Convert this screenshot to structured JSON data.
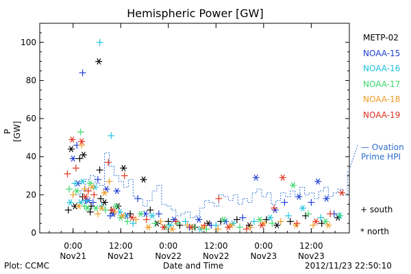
{
  "chart_data": {
    "type": "scatter",
    "title": "Hemispheric Power [GW]",
    "ylabel": "P [GW]",
    "xlabel": "Date and Time",
    "ylim": [
      0,
      110
    ],
    "xlim": [
      -0.35,
      2.9
    ],
    "yticks": [
      0,
      20,
      40,
      60,
      80,
      100
    ],
    "xticks": [
      {
        "value": 0,
        "label1": "0:00",
        "label2": "Nov21"
      },
      {
        "value": 0.5,
        "label1": "12:00",
        "label2": "Nov21"
      },
      {
        "value": 1.0,
        "label1": "0:00",
        "label2": "Nov22"
      },
      {
        "value": 1.5,
        "label1": "12:00",
        "label2": "Nov22"
      },
      {
        "value": 2.0,
        "label1": "0:00",
        "label2": "Nov23"
      },
      {
        "value": 2.5,
        "label1": "12:00",
        "label2": "Nov23"
      }
    ],
    "series": [
      {
        "name": "METP-02",
        "color": "#000000",
        "points": [
          [
            -0.02,
            44,
            "n"
          ],
          [
            0.07,
            39,
            "s"
          ],
          [
            0.11,
            41,
            "n"
          ],
          [
            0.1,
            19,
            "s"
          ],
          [
            0.19,
            14,
            "s"
          ],
          [
            0.27,
            90,
            "n"
          ],
          [
            0.28,
            33,
            "s"
          ],
          [
            0.29,
            18,
            "s"
          ],
          [
            0.4,
            12,
            "s"
          ],
          [
            0.47,
            14,
            "n"
          ],
          [
            0.53,
            34,
            "n"
          ],
          [
            0.6,
            10,
            "s"
          ],
          [
            0.74,
            28,
            "n"
          ],
          [
            0.81,
            12,
            "s"
          ],
          [
            0.88,
            5,
            "n"
          ],
          [
            1.0,
            6,
            "s"
          ],
          [
            1.12,
            4,
            "s"
          ],
          [
            1.28,
            3,
            "s"
          ],
          [
            1.42,
            5,
            "n"
          ],
          [
            1.55,
            6,
            "s"
          ],
          [
            1.72,
            7,
            "s"
          ],
          [
            1.85,
            4,
            "n"
          ],
          [
            2.03,
            7,
            "s"
          ],
          [
            2.14,
            4,
            "n"
          ],
          [
            2.28,
            6,
            "s"
          ],
          [
            2.44,
            9,
            "s"
          ],
          [
            2.61,
            5,
            "s"
          ],
          [
            2.78,
            8,
            "n"
          ],
          [
            -0.05,
            12,
            "s"
          ],
          [
            0.02,
            14,
            "n"
          ],
          [
            0.18,
            11,
            "s"
          ],
          [
            0.33,
            16,
            "n"
          ]
        ]
      },
      {
        "name": "NOAA-15",
        "color": "#1c3ed6",
        "points": [
          [
            0.0,
            39,
            "n"
          ],
          [
            0.04,
            46,
            "s"
          ],
          [
            0.1,
            84,
            "s"
          ],
          [
            0.13,
            17,
            "s"
          ],
          [
            0.16,
            17,
            "n"
          ],
          [
            0.26,
            28,
            "s"
          ],
          [
            0.35,
            23,
            "n"
          ],
          [
            0.39,
            9,
            "s"
          ],
          [
            0.42,
            10,
            "n"
          ],
          [
            0.56,
            9,
            "n"
          ],
          [
            0.68,
            18,
            "s"
          ],
          [
            0.76,
            10,
            "n"
          ],
          [
            0.9,
            10,
            "s"
          ],
          [
            1.06,
            7,
            "n"
          ],
          [
            1.22,
            3,
            "s"
          ],
          [
            1.32,
            7,
            "n"
          ],
          [
            1.45,
            4,
            "s"
          ],
          [
            1.6,
            6,
            "n"
          ],
          [
            1.78,
            8,
            "s"
          ],
          [
            1.92,
            29,
            "n"
          ],
          [
            2.12,
            12,
            "n"
          ],
          [
            2.22,
            16,
            "s"
          ],
          [
            2.37,
            19,
            "n"
          ],
          [
            2.5,
            16,
            "s"
          ],
          [
            2.57,
            27,
            "n"
          ],
          [
            2.66,
            18,
            "n"
          ],
          [
            2.74,
            10,
            "s"
          ],
          [
            0.05,
            26,
            "n"
          ],
          [
            0.21,
            16,
            "s"
          ],
          [
            0.46,
            22,
            "n"
          ]
        ]
      },
      {
        "name": "NOAA-16",
        "color": "#19c2dd",
        "points": [
          [
            -0.03,
            16,
            "n"
          ],
          [
            0.02,
            26,
            "s"
          ],
          [
            0.08,
            16,
            "n"
          ],
          [
            0.14,
            17,
            "s"
          ],
          [
            0.23,
            24,
            "n"
          ],
          [
            0.28,
            100,
            "s"
          ],
          [
            0.4,
            51,
            "s"
          ],
          [
            0.49,
            11,
            "n"
          ],
          [
            0.63,
            5,
            "s"
          ],
          [
            0.83,
            9,
            "n"
          ],
          [
            1.02,
            4,
            "n"
          ],
          [
            1.18,
            6,
            "s"
          ],
          [
            1.34,
            2,
            "n"
          ],
          [
            1.5,
            4,
            "s"
          ],
          [
            1.68,
            5,
            "n"
          ],
          [
            1.9,
            6,
            "s"
          ],
          [
            2.07,
            8,
            "n"
          ],
          [
            2.26,
            9,
            "s"
          ],
          [
            2.41,
            13,
            "n"
          ],
          [
            2.6,
            8,
            "s"
          ],
          [
            2.8,
            9,
            "n"
          ],
          [
            0.1,
            27,
            "n"
          ],
          [
            0.3,
            14,
            "s"
          ],
          [
            0.55,
            9,
            "s"
          ]
        ]
      },
      {
        "name": "NOAA-17",
        "color": "#3bd86b",
        "points": [
          [
            0.04,
            22,
            "n"
          ],
          [
            0.08,
            53,
            "s"
          ],
          [
            0.12,
            14,
            "s"
          ],
          [
            0.18,
            26,
            "n"
          ],
          [
            0.24,
            13,
            "n"
          ],
          [
            0.34,
            12,
            "s"
          ],
          [
            0.45,
            14,
            "n"
          ],
          [
            0.57,
            6,
            "s"
          ],
          [
            0.71,
            10,
            "n"
          ],
          [
            0.86,
            5,
            "s"
          ],
          [
            0.97,
            3,
            "n"
          ],
          [
            1.1,
            5,
            "s"
          ],
          [
            1.26,
            3,
            "n"
          ],
          [
            1.4,
            2,
            "s"
          ],
          [
            1.58,
            7,
            "n"
          ],
          [
            1.75,
            3,
            "s"
          ],
          [
            1.96,
            7,
            "n"
          ],
          [
            2.09,
            5,
            "s"
          ],
          [
            2.31,
            25,
            "n"
          ],
          [
            2.47,
            10,
            "s"
          ],
          [
            2.65,
            6,
            "n"
          ],
          [
            2.8,
            9,
            "s"
          ],
          [
            -0.04,
            23,
            "s"
          ],
          [
            0.15,
            13,
            "n"
          ],
          [
            0.5,
            8,
            "n"
          ]
        ]
      },
      {
        "name": "NOAA-18",
        "color": "#f09a22",
        "points": [
          [
            0.0,
            20,
            "s"
          ],
          [
            0.06,
            14,
            "n"
          ],
          [
            0.12,
            23,
            "s"
          ],
          [
            0.2,
            24,
            "n"
          ],
          [
            0.3,
            13,
            "n"
          ],
          [
            0.38,
            27,
            "s"
          ],
          [
            0.44,
            11,
            "s"
          ],
          [
            0.52,
            9,
            "n"
          ],
          [
            0.66,
            7,
            "s"
          ],
          [
            0.79,
            3,
            "n"
          ],
          [
            0.92,
            6,
            "s"
          ],
          [
            1.04,
            2,
            "n"
          ],
          [
            1.2,
            4,
            "s"
          ],
          [
            1.36,
            3,
            "n"
          ],
          [
            1.52,
            2,
            "s"
          ],
          [
            1.66,
            4,
            "n"
          ],
          [
            1.86,
            3,
            "s"
          ],
          [
            2.0,
            5,
            "n"
          ],
          [
            2.18,
            6,
            "s"
          ],
          [
            2.34,
            4,
            "n"
          ],
          [
            2.52,
            4,
            "s"
          ],
          [
            2.68,
            4,
            "n"
          ],
          [
            0.09,
            46,
            "s"
          ],
          [
            0.26,
            10,
            "s"
          ],
          [
            0.33,
            21,
            "n"
          ]
        ]
      },
      {
        "name": "NOAA-19",
        "color": "#e0301e",
        "points": [
          [
            -0.01,
            49,
            "n"
          ],
          [
            0.03,
            34,
            "s"
          ],
          [
            0.09,
            48,
            "n"
          ],
          [
            0.16,
            22,
            "s"
          ],
          [
            0.22,
            20,
            "s"
          ],
          [
            0.37,
            37,
            "s"
          ],
          [
            0.41,
            12,
            "n"
          ],
          [
            0.54,
            30,
            "s"
          ],
          [
            0.62,
            8,
            "n"
          ],
          [
            0.77,
            7,
            "s"
          ],
          [
            0.95,
            3,
            "n"
          ],
          [
            1.08,
            6,
            "s"
          ],
          [
            1.24,
            3,
            "n"
          ],
          [
            1.38,
            4,
            "s"
          ],
          [
            1.53,
            18,
            "s"
          ],
          [
            1.63,
            3,
            "n"
          ],
          [
            1.82,
            2,
            "s"
          ],
          [
            1.98,
            4,
            "n"
          ],
          [
            2.11,
            13,
            "s"
          ],
          [
            2.2,
            29,
            "n"
          ],
          [
            2.35,
            5,
            "s"
          ],
          [
            2.55,
            6,
            "n"
          ],
          [
            2.7,
            10,
            "s"
          ],
          [
            2.82,
            21,
            "n"
          ],
          [
            -0.06,
            31,
            "s"
          ],
          [
            0.13,
            19,
            "n"
          ]
        ]
      }
    ],
    "ovation_line": {
      "name": "Ovation Prime HPI",
      "color": "#2a6ccf",
      "x": [
        0.03,
        0.08,
        0.13,
        0.18,
        0.23,
        0.28,
        0.33,
        0.38,
        0.43,
        0.48,
        0.53,
        0.58,
        0.63,
        0.68,
        0.73,
        0.78,
        0.83,
        0.88,
        0.93,
        0.98,
        1.03,
        1.08,
        1.13,
        1.18,
        1.23,
        1.28,
        1.33,
        1.38,
        1.43,
        1.48,
        1.53,
        1.58,
        1.63,
        1.68,
        1.73,
        1.78,
        1.83,
        1.88,
        1.93,
        1.98,
        2.03,
        2.08,
        2.13,
        2.18,
        2.23,
        2.28,
        2.33,
        2.38,
        2.43,
        2.48,
        2.53,
        2.58,
        2.63,
        2.68,
        2.73,
        2.78,
        2.83,
        2.88
      ],
      "y": [
        20,
        22,
        28,
        30,
        26,
        25,
        42,
        35,
        30,
        27,
        24,
        28,
        19,
        18,
        14,
        17,
        22,
        25,
        15,
        14,
        12,
        9,
        10,
        11,
        8,
        9,
        13,
        17,
        16,
        14,
        20,
        19,
        17,
        20,
        15,
        18,
        16,
        21,
        23,
        19,
        21,
        15,
        17,
        21,
        19,
        22,
        19,
        24,
        20,
        21,
        18,
        22,
        24,
        19,
        21,
        23,
        20,
        32
      ]
    },
    "legend_placement": "right",
    "marker_legend": [
      {
        "symbol": "+",
        "label": "south"
      },
      {
        "symbol": "*",
        "label": "north"
      }
    ],
    "ovation_label_line1": "Ovation",
    "ovation_label_line2": "Prime HPI"
  },
  "footer": {
    "left": "Plot: CCMC",
    "center": "Date and Time",
    "right": "2012/11/23 22:50:10"
  }
}
